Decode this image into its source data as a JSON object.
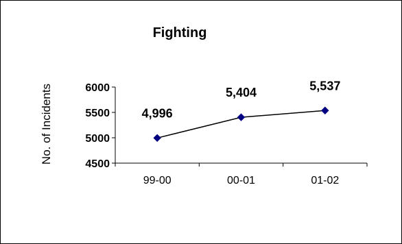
{
  "chart_data": {
    "type": "line",
    "title": "Fighting",
    "xlabel": "",
    "ylabel": "No. of Incidents",
    "categories": [
      "99-00",
      "00-01",
      "01-02"
    ],
    "values": [
      4996,
      5404,
      5537
    ],
    "data_labels": [
      "4,996",
      "5,404",
      "5,537"
    ],
    "yticks": [
      "4500",
      "5000",
      "5500",
      "6000"
    ],
    "ylim": [
      4500,
      6000
    ],
    "grid": false,
    "legend": "none",
    "colors": {
      "line": "#000000",
      "marker": "#000080"
    }
  }
}
